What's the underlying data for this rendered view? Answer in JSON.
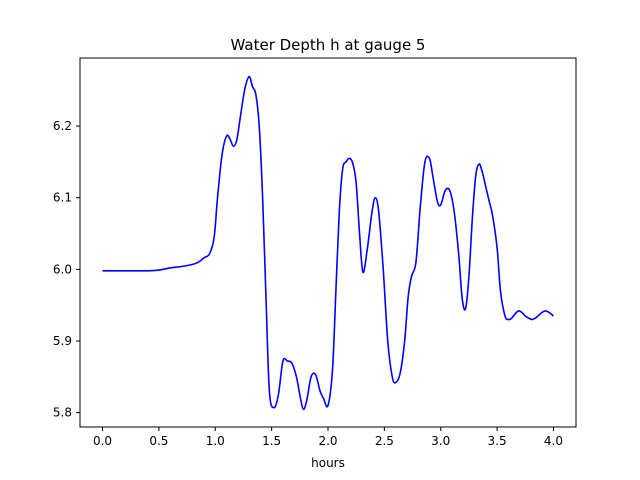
{
  "chart_data": {
    "type": "line",
    "title": "Water Depth h at gauge 5",
    "xlabel": "hours",
    "ylabel": "",
    "xlim": [
      -0.2,
      4.2
    ],
    "ylim": [
      5.78,
      6.295
    ],
    "xticks": [
      0.0,
      0.5,
      1.0,
      1.5,
      2.0,
      2.5,
      3.0,
      3.5,
      4.0
    ],
    "xtick_labels": [
      "0.0",
      "0.5",
      "1.0",
      "1.5",
      "2.0",
      "2.5",
      "3.0",
      "3.5",
      "4.0"
    ],
    "yticks": [
      5.8,
      5.9,
      6.0,
      6.1,
      6.2
    ],
    "ytick_labels": [
      "5.8",
      "5.9",
      "6.0",
      "6.1",
      "6.2"
    ],
    "grid": false,
    "legend": false,
    "series": [
      {
        "color": "#0000ff",
        "x": [
          0.0,
          0.2,
          0.4,
          0.5,
          0.6,
          0.7,
          0.8,
          0.85,
          0.9,
          0.95,
          0.99,
          1.02,
          1.06,
          1.1,
          1.13,
          1.16,
          1.19,
          1.22,
          1.26,
          1.3,
          1.33,
          1.36,
          1.39,
          1.42,
          1.45,
          1.48,
          1.52,
          1.56,
          1.6,
          1.64,
          1.68,
          1.72,
          1.75,
          1.78,
          1.81,
          1.85,
          1.89,
          1.93,
          1.96,
          2.0,
          2.04,
          2.07,
          2.1,
          2.13,
          2.16,
          2.19,
          2.22,
          2.25,
          2.28,
          2.31,
          2.35,
          2.39,
          2.42,
          2.45,
          2.49,
          2.53,
          2.57,
          2.6,
          2.64,
          2.68,
          2.71,
          2.74,
          2.78,
          2.82,
          2.86,
          2.9,
          2.93,
          2.97,
          3.0,
          3.04,
          3.08,
          3.12,
          3.16,
          3.19,
          3.22,
          3.25,
          3.28,
          3.31,
          3.34,
          3.37,
          3.4,
          3.43,
          3.46,
          3.5,
          3.53,
          3.57,
          3.6,
          3.63,
          3.66,
          3.69,
          3.72,
          3.75,
          3.78,
          3.81,
          3.84,
          3.87,
          3.9,
          3.93,
          3.96,
          4.0
        ],
        "y": [
          5.998,
          5.998,
          5.998,
          5.999,
          6.002,
          6.004,
          6.007,
          6.01,
          6.016,
          6.022,
          6.045,
          6.1,
          6.16,
          6.186,
          6.182,
          6.172,
          6.18,
          6.21,
          6.25,
          6.269,
          6.255,
          6.244,
          6.2,
          6.1,
          5.96,
          5.83,
          5.807,
          5.825,
          5.872,
          5.872,
          5.869,
          5.85,
          5.825,
          5.805,
          5.816,
          5.85,
          5.853,
          5.83,
          5.82,
          5.81,
          5.86,
          5.97,
          6.08,
          6.14,
          6.15,
          6.155,
          6.148,
          6.12,
          6.05,
          5.996,
          6.03,
          6.08,
          6.1,
          6.08,
          6.0,
          5.9,
          5.85,
          5.842,
          5.855,
          5.9,
          5.96,
          5.99,
          6.01,
          6.09,
          6.15,
          6.155,
          6.13,
          6.095,
          6.09,
          6.11,
          6.11,
          6.08,
          6.02,
          5.96,
          5.945,
          5.99,
          6.07,
          6.13,
          6.147,
          6.135,
          6.115,
          6.095,
          6.075,
          6.03,
          5.97,
          5.935,
          5.93,
          5.932,
          5.938,
          5.942,
          5.94,
          5.935,
          5.932,
          5.93,
          5.932,
          5.936,
          5.94,
          5.942,
          5.94,
          5.935
        ]
      }
    ]
  }
}
